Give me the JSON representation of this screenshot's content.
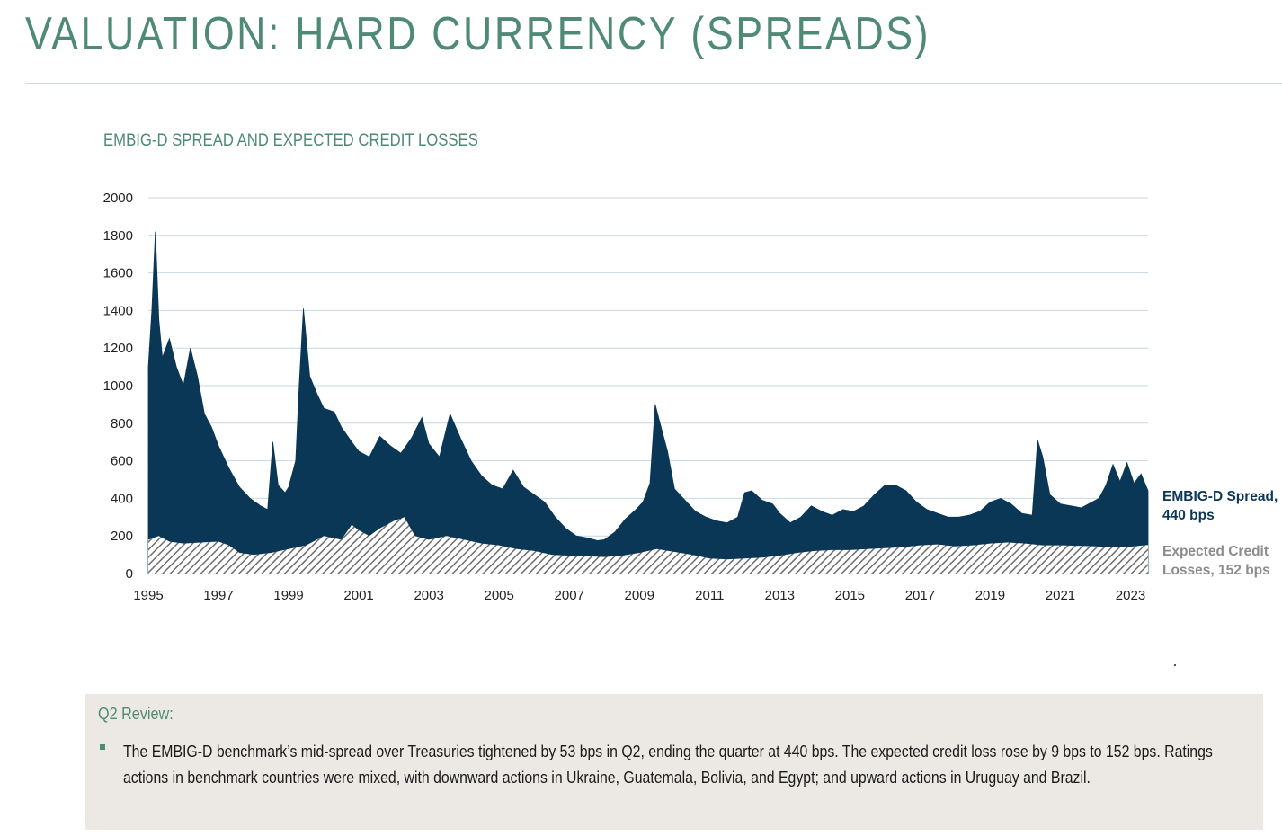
{
  "page": {
    "title": "VALUATION: HARD CURRENCY (SPREADS)"
  },
  "chart_data": {
    "type": "area",
    "title": "EMBIG-D SPREAD AND EXPECTED CREDIT LOSSES",
    "xlabel": "",
    "ylabel": "",
    "xlim": [
      1995.0,
      2023.5
    ],
    "ylim": [
      0,
      2000
    ],
    "y_ticks": [
      "0",
      "200",
      "400",
      "600",
      "800",
      "1000",
      "1200",
      "1400",
      "1600",
      "1800",
      "2000"
    ],
    "x_ticks": [
      "1995",
      "1997",
      "1999",
      "2001",
      "2003",
      "2005",
      "2007",
      "2009",
      "2011",
      "2013",
      "2015",
      "2017",
      "2019",
      "2021",
      "2023"
    ],
    "grid": "horizontal",
    "legend_placement": "right",
    "series": [
      {
        "name": "EMBIG-D Spread",
        "end_label": "EMBIG-D Spread,",
        "end_value_label": "440 bps",
        "color": "#0a3756",
        "style": "solid-area",
        "points": [
          [
            1995.0,
            1100
          ],
          [
            1995.1,
            1400
          ],
          [
            1995.2,
            1820
          ],
          [
            1995.3,
            1350
          ],
          [
            1995.4,
            1150
          ],
          [
            1995.6,
            1250
          ],
          [
            1995.8,
            1100
          ],
          [
            1996.0,
            1000
          ],
          [
            1996.2,
            1200
          ],
          [
            1996.4,
            1050
          ],
          [
            1996.6,
            850
          ],
          [
            1996.8,
            780
          ],
          [
            1997.0,
            680
          ],
          [
            1997.3,
            560
          ],
          [
            1997.6,
            460
          ],
          [
            1997.9,
            400
          ],
          [
            1998.2,
            360
          ],
          [
            1998.4,
            340
          ],
          [
            1998.55,
            700
          ],
          [
            1998.7,
            470
          ],
          [
            1998.9,
            430
          ],
          [
            1999.0,
            460
          ],
          [
            1999.2,
            600
          ],
          [
            1999.3,
            1000
          ],
          [
            1999.42,
            1410
          ],
          [
            1999.6,
            1050
          ],
          [
            1999.8,
            960
          ],
          [
            2000.0,
            880
          ],
          [
            2000.3,
            860
          ],
          [
            2000.5,
            780
          ],
          [
            2000.8,
            700
          ],
          [
            2001.0,
            650
          ],
          [
            2001.3,
            620
          ],
          [
            2001.6,
            730
          ],
          [
            2001.9,
            680
          ],
          [
            2002.2,
            640
          ],
          [
            2002.5,
            720
          ],
          [
            2002.8,
            830
          ],
          [
            2003.0,
            690
          ],
          [
            2003.3,
            620
          ],
          [
            2003.6,
            850
          ],
          [
            2003.9,
            720
          ],
          [
            2004.2,
            600
          ],
          [
            2004.5,
            520
          ],
          [
            2004.8,
            470
          ],
          [
            2005.1,
            450
          ],
          [
            2005.4,
            550
          ],
          [
            2005.7,
            460
          ],
          [
            2006.0,
            420
          ],
          [
            2006.3,
            380
          ],
          [
            2006.6,
            300
          ],
          [
            2006.9,
            240
          ],
          [
            2007.2,
            200
          ],
          [
            2007.5,
            190
          ],
          [
            2007.8,
            175
          ],
          [
            2008.0,
            180
          ],
          [
            2008.3,
            220
          ],
          [
            2008.6,
            290
          ],
          [
            2008.9,
            340
          ],
          [
            2009.1,
            380
          ],
          [
            2009.3,
            480
          ],
          [
            2009.45,
            900
          ],
          [
            2009.6,
            790
          ],
          [
            2009.8,
            650
          ],
          [
            2010.0,
            450
          ],
          [
            2010.3,
            390
          ],
          [
            2010.6,
            330
          ],
          [
            2010.9,
            300
          ],
          [
            2011.2,
            280
          ],
          [
            2011.5,
            270
          ],
          [
            2011.8,
            300
          ],
          [
            2012.0,
            430
          ],
          [
            2012.2,
            440
          ],
          [
            2012.5,
            390
          ],
          [
            2012.8,
            370
          ],
          [
            2013.0,
            320
          ],
          [
            2013.3,
            270
          ],
          [
            2013.6,
            300
          ],
          [
            2013.9,
            360
          ],
          [
            2014.2,
            330
          ],
          [
            2014.5,
            310
          ],
          [
            2014.8,
            340
          ],
          [
            2015.1,
            330
          ],
          [
            2015.4,
            360
          ],
          [
            2015.7,
            420
          ],
          [
            2016.0,
            470
          ],
          [
            2016.3,
            470
          ],
          [
            2016.6,
            440
          ],
          [
            2016.9,
            380
          ],
          [
            2017.2,
            340
          ],
          [
            2017.5,
            320
          ],
          [
            2017.8,
            300
          ],
          [
            2018.1,
            300
          ],
          [
            2018.4,
            310
          ],
          [
            2018.7,
            330
          ],
          [
            2019.0,
            380
          ],
          [
            2019.3,
            400
          ],
          [
            2019.6,
            370
          ],
          [
            2019.9,
            320
          ],
          [
            2020.2,
            310
          ],
          [
            2020.35,
            710
          ],
          [
            2020.5,
            620
          ],
          [
            2020.7,
            420
          ],
          [
            2021.0,
            370
          ],
          [
            2021.3,
            360
          ],
          [
            2021.6,
            350
          ],
          [
            2021.9,
            380
          ],
          [
            2022.1,
            400
          ],
          [
            2022.3,
            470
          ],
          [
            2022.5,
            580
          ],
          [
            2022.7,
            490
          ],
          [
            2022.9,
            590
          ],
          [
            2023.1,
            480
          ],
          [
            2023.3,
            530
          ],
          [
            2023.5,
            440
          ]
        ]
      },
      {
        "name": "Expected Credit Losses",
        "end_label": "Expected Credit",
        "end_value_label": "Losses, 152 bps",
        "color": "#8c8c8c",
        "style": "hatched-area",
        "points": [
          [
            1995.0,
            180
          ],
          [
            1995.3,
            200
          ],
          [
            1995.6,
            170
          ],
          [
            1996.0,
            160
          ],
          [
            1996.5,
            165
          ],
          [
            1997.0,
            170
          ],
          [
            1997.3,
            150
          ],
          [
            1997.6,
            110
          ],
          [
            1998.0,
            100
          ],
          [
            1998.5,
            110
          ],
          [
            1999.0,
            130
          ],
          [
            1999.5,
            150
          ],
          [
            2000.0,
            200
          ],
          [
            2000.5,
            180
          ],
          [
            2000.8,
            260
          ],
          [
            2001.0,
            230
          ],
          [
            2001.3,
            200
          ],
          [
            2001.6,
            240
          ],
          [
            2002.0,
            280
          ],
          [
            2002.3,
            300
          ],
          [
            2002.6,
            200
          ],
          [
            2003.0,
            180
          ],
          [
            2003.5,
            200
          ],
          [
            2004.0,
            180
          ],
          [
            2004.5,
            160
          ],
          [
            2005.0,
            150
          ],
          [
            2005.5,
            130
          ],
          [
            2006.0,
            120
          ],
          [
            2006.5,
            100
          ],
          [
            2007.0,
            95
          ],
          [
            2007.5,
            92
          ],
          [
            2008.0,
            88
          ],
          [
            2008.5,
            95
          ],
          [
            2009.0,
            110
          ],
          [
            2009.5,
            130
          ],
          [
            2010.0,
            115
          ],
          [
            2010.5,
            100
          ],
          [
            2011.0,
            80
          ],
          [
            2011.5,
            75
          ],
          [
            2012.0,
            80
          ],
          [
            2012.5,
            85
          ],
          [
            2013.0,
            95
          ],
          [
            2013.5,
            110
          ],
          [
            2014.0,
            120
          ],
          [
            2014.5,
            125
          ],
          [
            2015.0,
            125
          ],
          [
            2015.5,
            130
          ],
          [
            2016.0,
            135
          ],
          [
            2016.5,
            140
          ],
          [
            2017.0,
            150
          ],
          [
            2017.5,
            155
          ],
          [
            2018.0,
            145
          ],
          [
            2018.5,
            150
          ],
          [
            2019.0,
            160
          ],
          [
            2019.5,
            165
          ],
          [
            2020.0,
            160
          ],
          [
            2020.5,
            150
          ],
          [
            2021.0,
            150
          ],
          [
            2021.5,
            148
          ],
          [
            2022.0,
            145
          ],
          [
            2022.5,
            140
          ],
          [
            2023.0,
            143
          ],
          [
            2023.5,
            152
          ]
        ]
      }
    ]
  },
  "review": {
    "heading": "Q2 Review:",
    "bullets": [
      "The EMBIG-D benchmark’s mid-spread over Treasuries tightened by 53 bps in Q2, ending the quarter at 440 bps. The expected credit loss rose by 9 bps to 152 bps. Ratings actions in benchmark countries were mixed, with downward actions in Ukraine, Guatemala, Bolivia, and Egypt; and upward actions in Uruguay and Brazil."
    ]
  }
}
